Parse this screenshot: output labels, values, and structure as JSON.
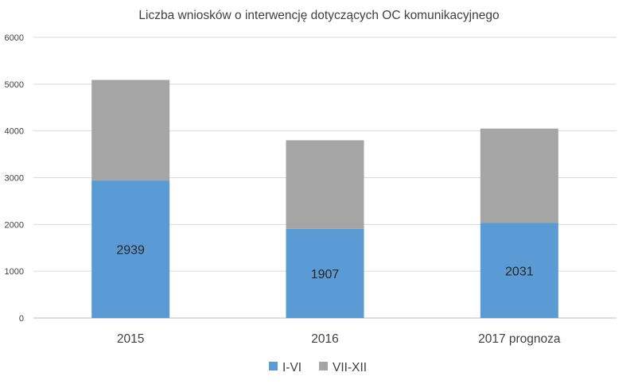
{
  "chart_data": {
    "type": "bar",
    "stacked": true,
    "title": "Liczba wniosków o interwencję dotyczących OC komunikacyjnego",
    "xlabel": "",
    "ylabel": "",
    "categories": [
      "2015",
      "2016",
      "2017 prognoza"
    ],
    "ylim": [
      0,
      6000
    ],
    "yticks": [
      "0",
      "1000",
      "2000",
      "3000",
      "4000",
      "5000",
      "6000"
    ],
    "grid": true,
    "legend_position": "bottom",
    "series": [
      {
        "name": "I-VI",
        "values": [
          2939,
          1907,
          2031
        ],
        "data_labels": [
          "2939",
          "1907",
          "2031"
        ],
        "color": "#5B9BD5"
      },
      {
        "name": "VII-XII",
        "values": [
          2151,
          1893,
          2019
        ],
        "color": "#A5A5A5"
      }
    ]
  }
}
